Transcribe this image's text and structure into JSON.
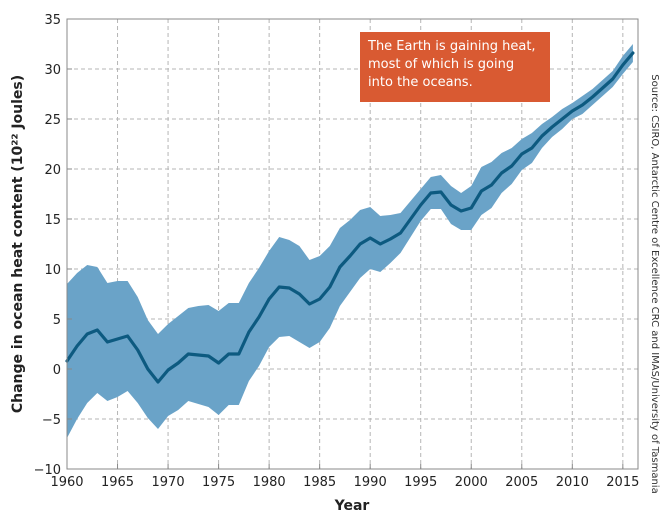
{
  "colors": {
    "band": "#6aa3c8",
    "line": "#0d5a80",
    "callout_bg": "#d95a32",
    "grid": "#b5b5b5",
    "axis": "#888888"
  },
  "callout": {
    "lines": [
      "The Earth is gaining heat,",
      "most of which is going",
      "into the oceans."
    ]
  },
  "source_note": "Source: CSIRO, Antarctic Centre of Excellence CRC and IMAS/University of Tasmania",
  "chart_data": {
    "type": "area",
    "title": "",
    "xlabel": "Year",
    "ylabel": "Change in ocean heat content (10²² Joules)",
    "xlim": [
      1960,
      2016.5
    ],
    "ylim": [
      -10,
      35
    ],
    "xticks": [
      1960,
      1965,
      1970,
      1975,
      1980,
      1985,
      1990,
      1995,
      2000,
      2005,
      2010,
      2015
    ],
    "yticks": [
      -10,
      -5,
      0,
      5,
      10,
      15,
      20,
      25,
      30,
      35
    ],
    "grid": true,
    "x": [
      1960,
      1961,
      1962,
      1963,
      1964,
      1965,
      1966,
      1967,
      1968,
      1969,
      1970,
      1971,
      1972,
      1973,
      1974,
      1975,
      1976,
      1977,
      1978,
      1979,
      1980,
      1981,
      1982,
      1983,
      1984,
      1985,
      1986,
      1987,
      1988,
      1989,
      1990,
      1991,
      1992,
      1993,
      1994,
      1995,
      1996,
      1997,
      1998,
      1999,
      2000,
      2001,
      2002,
      2003,
      2004,
      2005,
      2006,
      2007,
      2008,
      2009,
      2010,
      2011,
      2012,
      2013,
      2014,
      2015,
      2016
    ],
    "series": [
      {
        "values": [
          0.8,
          2.3,
          3.5,
          3.9,
          2.7,
          3.0,
          3.3,
          1.9,
          0.0,
          -1.3,
          -0.1,
          0.6,
          1.5,
          1.4,
          1.3,
          0.6,
          1.5,
          1.5,
          3.7,
          5.2,
          7.0,
          8.2,
          8.1,
          7.5,
          6.5,
          7.0,
          8.2,
          10.2,
          11.3,
          12.5,
          13.1,
          12.5,
          13.0,
          13.6,
          15.0,
          16.4,
          17.6,
          17.7,
          16.4,
          15.8,
          16.1,
          17.8,
          18.4,
          19.6,
          20.3,
          21.5,
          22.1,
          23.3,
          24.2,
          25.0,
          25.8,
          26.4,
          27.2,
          28.1,
          29.0,
          30.4,
          31.6
        ],
        "upper": [
          8.5,
          9.6,
          10.4,
          10.2,
          8.6,
          8.8,
          8.8,
          7.2,
          4.9,
          3.5,
          4.5,
          5.3,
          6.1,
          6.3,
          6.4,
          5.8,
          6.6,
          6.6,
          8.6,
          10.1,
          11.8,
          13.2,
          12.9,
          12.3,
          10.9,
          11.3,
          12.3,
          14.1,
          14.9,
          15.9,
          16.2,
          15.3,
          15.4,
          15.6,
          16.8,
          18.0,
          19.2,
          19.4,
          18.3,
          17.6,
          18.3,
          20.2,
          20.7,
          21.6,
          22.1,
          23.0,
          23.6,
          24.5,
          25.2,
          26.0,
          26.6,
          27.3,
          28.0,
          28.9,
          29.8,
          31.3,
          32.5
        ],
        "lower": [
          -6.9,
          -5.0,
          -3.4,
          -2.4,
          -3.2,
          -2.8,
          -2.2,
          -3.4,
          -4.9,
          -6.0,
          -4.7,
          -4.1,
          -3.2,
          -3.5,
          -3.8,
          -4.6,
          -3.6,
          -3.6,
          -1.2,
          0.3,
          2.2,
          3.2,
          3.3,
          2.7,
          2.1,
          2.7,
          4.1,
          6.3,
          7.7,
          9.1,
          10.0,
          9.7,
          10.6,
          11.6,
          13.2,
          14.8,
          16.0,
          16.0,
          14.5,
          13.9,
          13.9,
          15.4,
          16.1,
          17.6,
          18.5,
          19.9,
          20.6,
          22.1,
          23.2,
          24.0,
          25.0,
          25.5,
          26.4,
          27.3,
          28.2,
          29.5,
          30.7
        ]
      }
    ]
  }
}
